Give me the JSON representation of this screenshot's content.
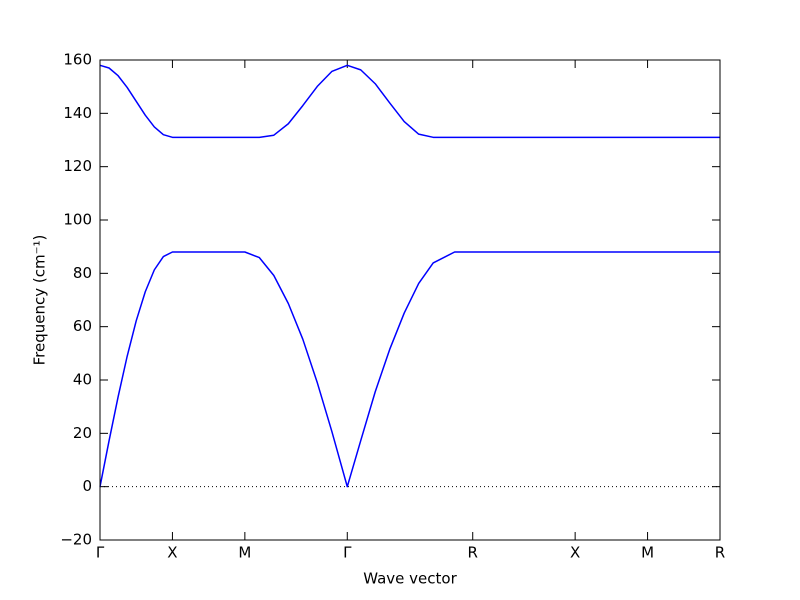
{
  "chart_data": {
    "type": "line",
    "xlabel": "Wave vector",
    "ylabel": "Frequency (cm⁻¹)",
    "x": [
      0,
      0.0625,
      0.125,
      0.1875,
      0.25,
      0.3125,
      0.375,
      0.4375,
      0.5,
      0.75,
      1.0,
      1.1,
      1.2,
      1.3,
      1.4,
      1.5,
      1.6,
      1.707,
      1.8,
      1.9,
      2.0,
      2.1,
      2.2,
      2.3,
      2.448,
      2.573,
      3.28,
      3.78,
      4.28
    ],
    "series": [
      {
        "color": "#0000ff",
        "values": [
          0,
          17.2,
          33.7,
          48.9,
          62.2,
          73.1,
          81.3,
          86.3,
          88,
          88,
          88,
          85.9,
          79.2,
          68.7,
          55.3,
          39.0,
          20.8,
          0,
          17.3,
          35.6,
          51.5,
          65.1,
          76.2,
          83.9,
          88,
          88,
          88,
          88,
          88
        ]
      },
      {
        "color": "#0000ff",
        "values": [
          158,
          157.0,
          154.1,
          149.7,
          144.5,
          139.3,
          134.9,
          132.0,
          131,
          131,
          131,
          131,
          131.8,
          136.1,
          142.9,
          150.1,
          155.7,
          158,
          156.3,
          151.1,
          143.9,
          136.9,
          132.2,
          131,
          131,
          131,
          131,
          131,
          131
        ]
      }
    ],
    "xlim": [
      0,
      4.28
    ],
    "xticks": [
      {
        "value": 0,
        "label": "Γ"
      },
      {
        "value": 0.5,
        "label": "X"
      },
      {
        "value": 1.0,
        "label": "M"
      },
      {
        "value": 1.707,
        "label": "Γ"
      },
      {
        "value": 2.573,
        "label": "R"
      },
      {
        "value": 3.28,
        "label": "X"
      },
      {
        "value": 3.78,
        "label": "M"
      },
      {
        "value": 4.28,
        "label": "R"
      }
    ],
    "ylim": [
      -20,
      160
    ],
    "yticks": [
      {
        "value": -20,
        "label": "−20"
      },
      0,
      20,
      40,
      60,
      80,
      100,
      120,
      140,
      160
    ],
    "hline": 0,
    "grid": false
  }
}
